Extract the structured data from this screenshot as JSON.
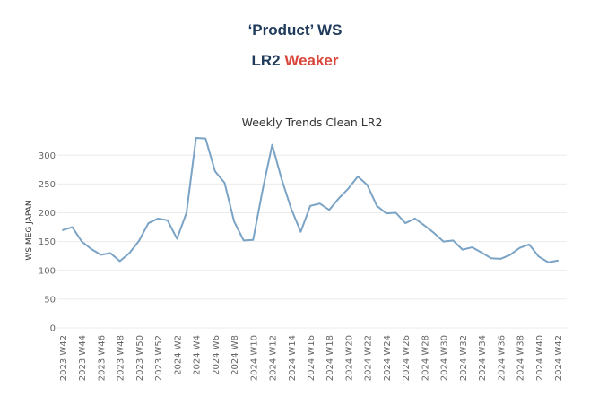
{
  "header": {
    "title": "‘Product’ WS",
    "subtitle_main": "LR2",
    "subtitle_accent": "Weaker"
  },
  "colors": {
    "title": "#1f3a5a",
    "accent": "#d9473c",
    "series_line": "#7aa3c5",
    "gridline": "#ebebeb",
    "axis_text": "#666666"
  },
  "chart_data": {
    "type": "line",
    "title": "Weekly Trends Clean LR2",
    "xlabel": "",
    "ylabel": "WS MEG JAPAN",
    "ylim": [
      0,
      330
    ],
    "yticks": [
      0,
      50,
      100,
      150,
      200,
      250,
      300
    ],
    "grid": true,
    "x": [
      "2023 W42",
      "2023 W43",
      "2023 W44",
      "2023 W45",
      "2023 W46",
      "2023 W47",
      "2023 W48",
      "2023 W49",
      "2023 W50",
      "2023 W51",
      "2023 W52",
      "2024 W1",
      "2024 W2",
      "2024 W3",
      "2024 W4",
      "2024 W5",
      "2024 W6",
      "2024 W7",
      "2024 W8",
      "2024 W9",
      "2024 W10",
      "2024 W11",
      "2024 W12",
      "2024 W13",
      "2024 W14",
      "2024 W15",
      "2024 W16",
      "2024 W17",
      "2024 W18",
      "2024 W19",
      "2024 W20",
      "2024 W21",
      "2024 W22",
      "2024 W23",
      "2024 W24",
      "2024 W25",
      "2024 W26",
      "2024 W27",
      "2024 W28",
      "2024 W29",
      "2024 W30",
      "2024 W31",
      "2024 W32",
      "2024 W33",
      "2024 W34",
      "2024 W35",
      "2024 W36",
      "2024 W37",
      "2024 W38",
      "2024 W39",
      "2024 W40",
      "2024 W41",
      "2024 W42"
    ],
    "x_tick_labels": [
      "2023 W42",
      "2023 W44",
      "2023 W46",
      "2023 W48",
      "2023 W50",
      "2023 W52",
      "2024 W2",
      "2024 W4",
      "2024 W6",
      "2024 W8",
      "2024 W10",
      "2024 W12",
      "2024 W14",
      "2024 W16",
      "2024 W18",
      "2024 W20",
      "2024 W22",
      "2024 W24",
      "2024 W26",
      "2024 W28",
      "2024 W30",
      "2024 W32",
      "2024 W34",
      "2024 W36",
      "2024 W38",
      "2024 W40",
      "2024 W42"
    ],
    "series": [
      {
        "name": "",
        "values": [
          170,
          175,
          150,
          137,
          127,
          130,
          116,
          130,
          151,
          182,
          190,
          187,
          155,
          200,
          330,
          329,
          272,
          252,
          185,
          152,
          153,
          240,
          318,
          258,
          207,
          167,
          212,
          216,
          205,
          225,
          242,
          263,
          248,
          212,
          199,
          200,
          182,
          190,
          178,
          165,
          150,
          152,
          136,
          140,
          131,
          121,
          120,
          127,
          139,
          145,
          124,
          114,
          117
        ]
      }
    ]
  }
}
